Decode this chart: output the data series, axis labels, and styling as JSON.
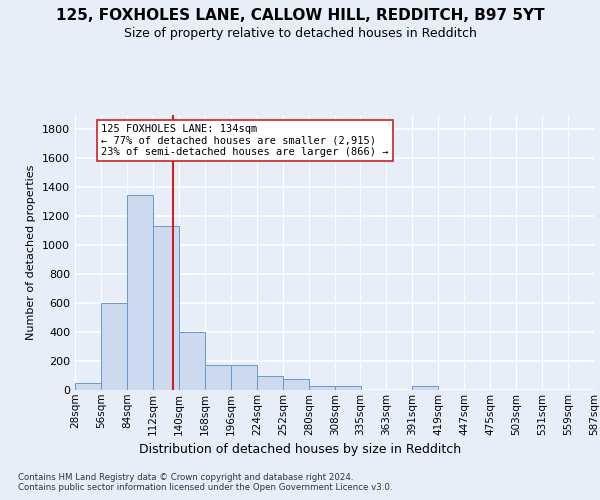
{
  "title_line1": "125, FOXHOLES LANE, CALLOW HILL, REDDITCH, B97 5YT",
  "title_line2": "Size of property relative to detached houses in Redditch",
  "xlabel": "Distribution of detached houses by size in Redditch",
  "ylabel": "Number of detached properties",
  "footnote": "Contains HM Land Registry data © Crown copyright and database right 2024.\nContains public sector information licensed under the Open Government Licence v3.0.",
  "bin_edges": [
    28,
    56,
    84,
    112,
    140,
    168,
    196,
    224,
    252,
    280,
    308,
    335,
    363,
    391,
    419,
    447,
    475,
    503,
    531,
    559,
    587
  ],
  "bar_heights": [
    50,
    600,
    1350,
    1130,
    400,
    170,
    170,
    100,
    75,
    25,
    25,
    0,
    0,
    25,
    0,
    0,
    0,
    0,
    0,
    0
  ],
  "bar_color": "#ccd9ee",
  "bar_edge_color": "#6699cc",
  "property_size": 134,
  "property_label": "125 FOXHOLES LANE: 134sqm",
  "annotation_line1": "← 77% of detached houses are smaller (2,915)",
  "annotation_line2": "23% of semi-detached houses are larger (866) →",
  "vline_color": "#cc2222",
  "annotation_box_color": "#ffffff",
  "annotation_box_edge": "#cc2222",
  "bg_color": "#e8eef8",
  "plot_bg_color": "#e8eef8",
  "grid_color": "#ffffff",
  "ylim": [
    0,
    1900
  ],
  "yticks": [
    0,
    200,
    400,
    600,
    800,
    1000,
    1200,
    1400,
    1600,
    1800
  ]
}
